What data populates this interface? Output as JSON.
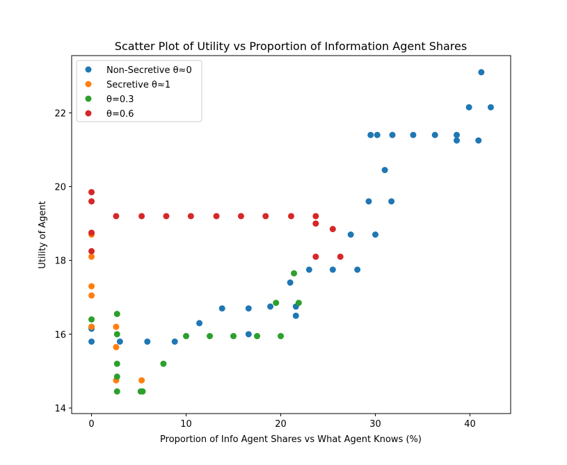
{
  "chart_data": {
    "type": "scatter",
    "title": "Scatter Plot of Utility vs Proportion of Information Agent Shares",
    "xlabel": "Proportion of Info Agent Shares vs What Agent Knows (%)",
    "ylabel": "Utility of Agent",
    "xlim": [
      -2.1,
      44.3
    ],
    "ylim": [
      13.85,
      23.55
    ],
    "xticks": [
      0,
      10,
      20,
      30,
      40
    ],
    "yticks": [
      14,
      16,
      18,
      20,
      22
    ],
    "grid": false,
    "legend_position": "upper-left",
    "series": [
      {
        "name": "Non-Secretive θ≈0",
        "color": "#1f77b4",
        "points": [
          [
            0,
            15.8
          ],
          [
            0,
            16.15
          ],
          [
            0,
            16.2
          ],
          [
            3.0,
            15.8
          ],
          [
            5.9,
            15.8
          ],
          [
            8.8,
            15.8
          ],
          [
            11.4,
            16.3
          ],
          [
            13.8,
            16.7
          ],
          [
            16.6,
            16.0
          ],
          [
            16.6,
            16.7
          ],
          [
            18.9,
            16.75
          ],
          [
            21.0,
            17.4
          ],
          [
            21.6,
            16.75
          ],
          [
            21.6,
            16.5
          ],
          [
            23.0,
            17.75
          ],
          [
            25.5,
            17.75
          ],
          [
            27.4,
            18.7
          ],
          [
            28.1,
            17.75
          ],
          [
            29.3,
            19.6
          ],
          [
            29.5,
            21.4
          ],
          [
            30.0,
            18.7
          ],
          [
            30.2,
            21.4
          ],
          [
            31.0,
            20.45
          ],
          [
            31.7,
            19.6
          ],
          [
            31.8,
            21.4
          ],
          [
            34.0,
            21.4
          ],
          [
            36.3,
            21.4
          ],
          [
            38.6,
            21.25
          ],
          [
            38.6,
            21.4
          ],
          [
            39.9,
            22.15
          ],
          [
            40.9,
            21.25
          ],
          [
            41.2,
            23.1
          ],
          [
            42.2,
            22.15
          ]
        ]
      },
      {
        "name": "Secretive θ≈1",
        "color": "#ff7f0e",
        "points": [
          [
            0,
            18.7
          ],
          [
            0,
            18.1
          ],
          [
            0,
            17.3
          ],
          [
            0,
            17.05
          ],
          [
            0,
            16.2
          ],
          [
            2.6,
            16.2
          ],
          [
            2.6,
            15.65
          ],
          [
            2.6,
            14.75
          ],
          [
            5.3,
            14.75
          ]
        ]
      },
      {
        "name": "θ=0.3",
        "color": "#2ca02c",
        "points": [
          [
            0,
            16.4
          ],
          [
            2.7,
            16.55
          ],
          [
            2.7,
            16.0
          ],
          [
            2.7,
            15.2
          ],
          [
            2.7,
            14.85
          ],
          [
            2.7,
            14.45
          ],
          [
            5.2,
            14.45
          ],
          [
            5.4,
            14.45
          ],
          [
            7.6,
            15.2
          ],
          [
            10.0,
            15.95
          ],
          [
            12.5,
            15.95
          ],
          [
            15.0,
            15.95
          ],
          [
            17.5,
            15.95
          ],
          [
            19.5,
            16.85
          ],
          [
            20.0,
            15.95
          ],
          [
            21.4,
            17.65
          ],
          [
            21.9,
            16.85
          ]
        ]
      },
      {
        "name": "θ=0.6",
        "color": "#d62728",
        "points": [
          [
            0,
            19.85
          ],
          [
            0,
            19.6
          ],
          [
            0,
            18.75
          ],
          [
            0,
            18.25
          ],
          [
            2.6,
            19.2
          ],
          [
            5.3,
            19.2
          ],
          [
            7.9,
            19.2
          ],
          [
            10.5,
            19.2
          ],
          [
            13.2,
            19.2
          ],
          [
            15.8,
            19.2
          ],
          [
            18.4,
            19.2
          ],
          [
            21.1,
            19.2
          ],
          [
            23.7,
            19.2
          ],
          [
            23.7,
            19.0
          ],
          [
            23.7,
            18.1
          ],
          [
            25.5,
            18.85
          ],
          [
            26.3,
            18.1
          ]
        ]
      }
    ]
  }
}
